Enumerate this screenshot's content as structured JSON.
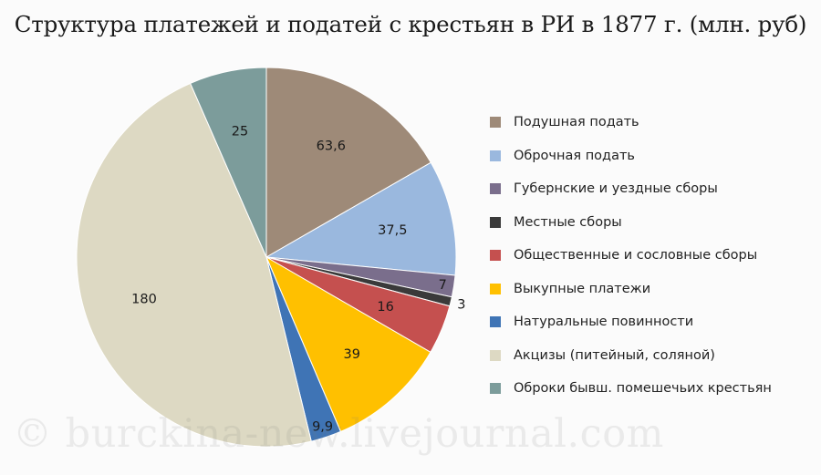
{
  "chart_data": {
    "type": "pie",
    "title": "Структура платежей и податей с крестьян в РИ в 1877 г. (млн. руб)",
    "categories": [
      "Подушная подать",
      "Оброчная подать",
      "Губернские и уездные сборы",
      "Местные сборы",
      "Общественные и сословные сборы",
      "Выкупные платежи",
      "Натуральные повинности",
      "Акцизы (питейный, соляной)",
      "Оброки бывш. помешечьих крестьян"
    ],
    "values": [
      63.6,
      37.5,
      7,
      3,
      16,
      39,
      9.9,
      180,
      25
    ],
    "data_labels": [
      "63,6",
      "37,5",
      "7",
      "3",
      "16",
      "39",
      "9,9",
      "180",
      "25"
    ],
    "colors": [
      "#9e8a78",
      "#9ab8de",
      "#7a6e8c",
      "#3a3a3a",
      "#c5504f",
      "#ffc000",
      "#3f74b5",
      "#ddd9c3",
      "#7c9c9b"
    ],
    "start_angle": "12 o'clock",
    "direction": "clockwise",
    "legend_position": "right"
  },
  "watermark": "© burckina-new.livejournal.com"
}
